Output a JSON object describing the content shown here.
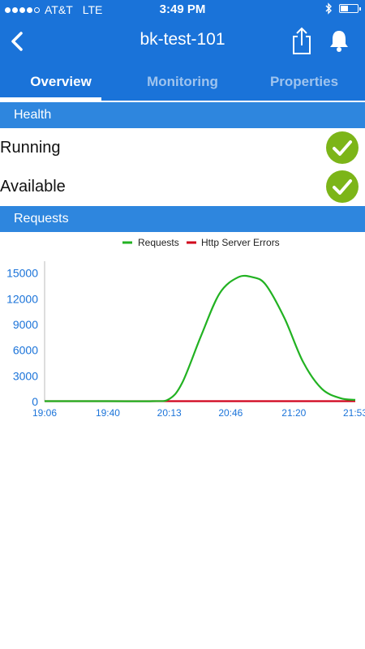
{
  "status_bar": {
    "carrier": "AT&T",
    "network": "LTE",
    "time": "3:49 PM",
    "battery_level": 0.45
  },
  "nav": {
    "title": "bk-test-101"
  },
  "tabs": [
    {
      "label": "Overview",
      "active": true
    },
    {
      "label": "Monitoring",
      "active": false
    },
    {
      "label": "Properties",
      "active": false
    }
  ],
  "health": {
    "header": "Health",
    "items": [
      {
        "label": "Running",
        "status": "ok"
      },
      {
        "label": "Available",
        "status": "ok"
      }
    ]
  },
  "requests": {
    "header": "Requests"
  },
  "colors": {
    "primary": "#1a73d9",
    "section": "#2e86de",
    "check": "#7cb518",
    "requests_line": "#22b222",
    "errors_line": "#d0021b",
    "axis_text": "#1a73d9"
  },
  "chart_data": {
    "type": "line",
    "title": "",
    "xlabel": "",
    "ylabel": "",
    "legend_position": "top-center",
    "x_ticks": [
      "19:06",
      "19:40",
      "20:13",
      "20:46",
      "21:20",
      "21:53"
    ],
    "y_ticks": [
      0,
      3000,
      6000,
      9000,
      12000,
      15000
    ],
    "ylim": [
      0,
      16000
    ],
    "grid": false,
    "x": [
      "19:06",
      "19:40",
      "20:04",
      "20:13",
      "20:20",
      "20:30",
      "20:40",
      "20:50",
      "20:58",
      "21:05",
      "21:15",
      "21:25",
      "21:35",
      "21:45",
      "21:53"
    ],
    "series": [
      {
        "name": "Requests",
        "values": [
          0,
          0,
          0,
          300,
          2200,
          7600,
          12600,
          14500,
          14500,
          13600,
          9700,
          4600,
          1500,
          400,
          200
        ]
      },
      {
        "name": "Http Server Errors",
        "values": [
          0,
          0,
          0,
          0,
          0,
          0,
          0,
          0,
          0,
          0,
          0,
          0,
          0,
          0,
          0
        ]
      }
    ]
  }
}
